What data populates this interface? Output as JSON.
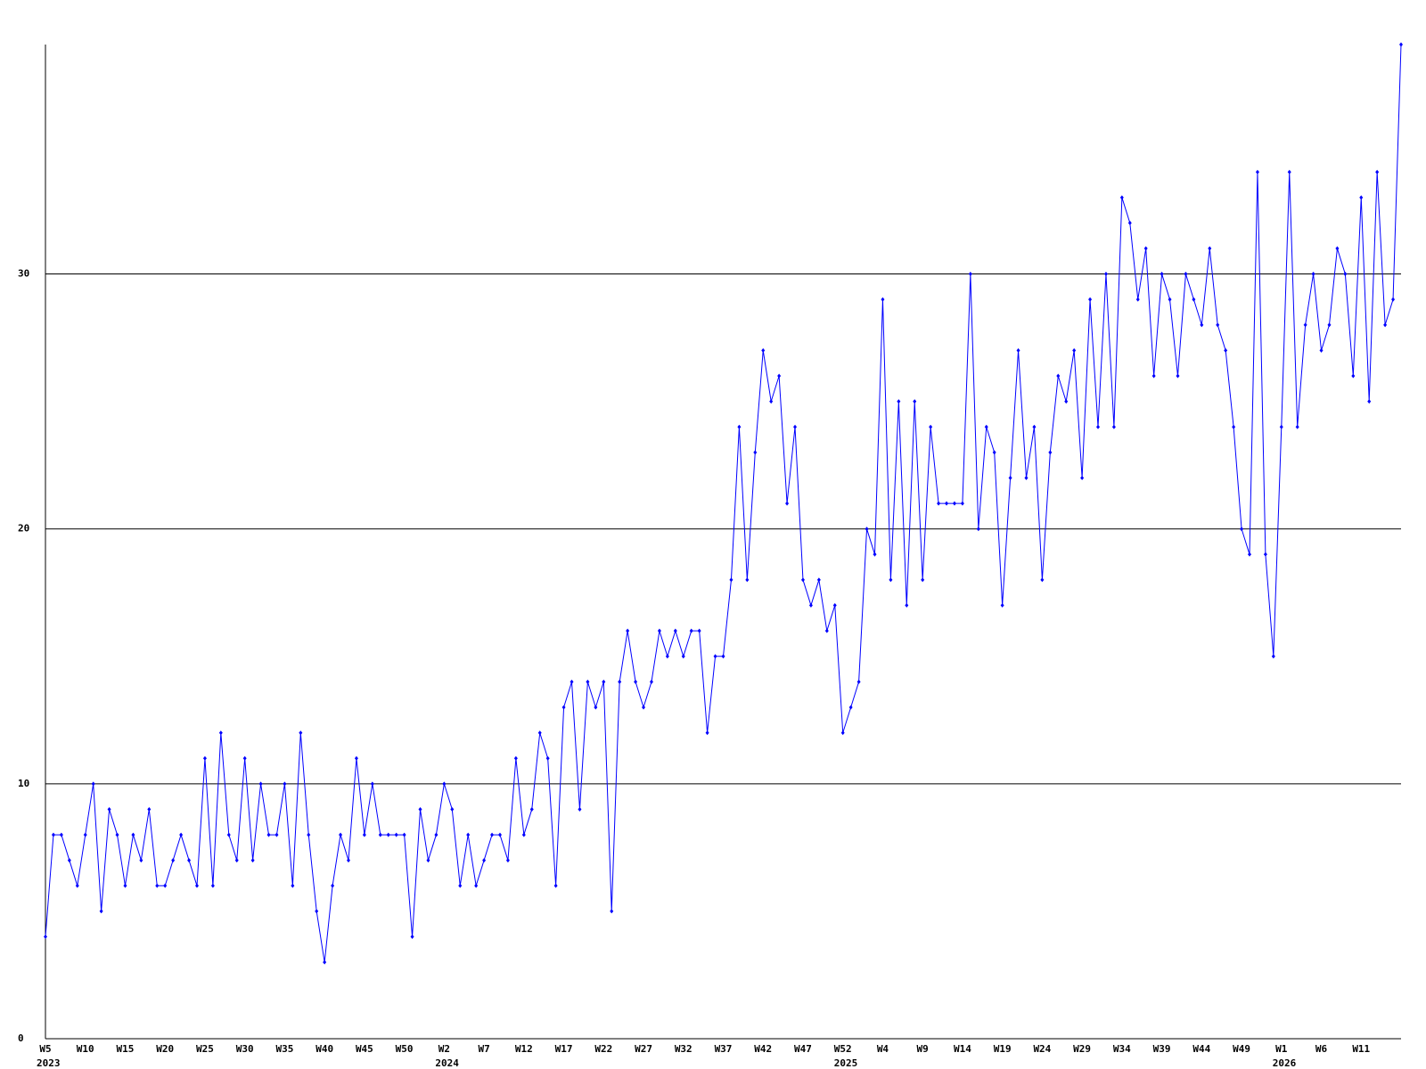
{
  "chart_data": {
    "type": "line",
    "categories": [
      "W5",
      null,
      null,
      null,
      null,
      "W10",
      null,
      null,
      null,
      null,
      "W15",
      null,
      null,
      null,
      null,
      "W20",
      null,
      null,
      null,
      null,
      "W25",
      null,
      null,
      null,
      null,
      "W30",
      null,
      null,
      null,
      null,
      "W35",
      null,
      null,
      null,
      null,
      "W40",
      null,
      null,
      null,
      null,
      "W45",
      null,
      null,
      null,
      null,
      "W50",
      null,
      null,
      null,
      null,
      "W2",
      null,
      null,
      null,
      null,
      "W7",
      null,
      null,
      null,
      null,
      "W12",
      null,
      null,
      null,
      null,
      "W17",
      null,
      null,
      null,
      null,
      "W22",
      null,
      null,
      null,
      null,
      "W27",
      null,
      null,
      null,
      null,
      "W32",
      null,
      null,
      null,
      null,
      "W37",
      null,
      null,
      null,
      null,
      "W42",
      null,
      null,
      null,
      null,
      "W47",
      null,
      null,
      null,
      null,
      "W52",
      null,
      null,
      null,
      null,
      "W4",
      null,
      null,
      null,
      null,
      "W9",
      null,
      null,
      null,
      null,
      "W14",
      null,
      null,
      null,
      null,
      "W19",
      null,
      null,
      null,
      null,
      "W24",
      null,
      null,
      null,
      null,
      "W29",
      null,
      null,
      null,
      null,
      "W34",
      null,
      null,
      null,
      null,
      "W39",
      null,
      null,
      null,
      null,
      "W44",
      null,
      null,
      null,
      null,
      "W49",
      null,
      null,
      null,
      null,
      "W1",
      null,
      null,
      null,
      null,
      "W6",
      null,
      null,
      null,
      null,
      "W11",
      null,
      null,
      null,
      null,
      null
    ],
    "year_labels": [
      {
        "at": 0,
        "label": "2023"
      },
      {
        "at": 50,
        "label": "2024"
      },
      {
        "at": 100,
        "label": "2025"
      },
      {
        "at": 155,
        "label": "2026"
      }
    ],
    "series": [
      {
        "color": "#0000ff",
        "values": [
          4,
          8,
          8,
          7,
          6,
          8,
          10,
          5,
          9,
          8,
          6,
          8,
          7,
          9,
          6,
          6,
          7,
          8,
          7,
          6,
          11,
          6,
          12,
          8,
          7,
          11,
          7,
          10,
          8,
          8,
          10,
          6,
          12,
          8,
          5,
          3,
          6,
          8,
          7,
          11,
          8,
          10,
          8,
          8,
          8,
          8,
          4,
          9,
          7,
          8,
          10,
          9,
          6,
          8,
          6,
          7,
          8,
          8,
          7,
          11,
          8,
          9,
          12,
          11,
          6,
          13,
          14,
          9,
          14,
          13,
          14,
          5,
          14,
          16,
          14,
          13,
          14,
          16,
          15,
          16,
          15,
          16,
          16,
          12,
          15,
          15,
          18,
          24,
          18,
          23,
          27,
          25,
          26,
          21,
          24,
          18,
          17,
          18,
          16,
          17,
          12,
          13,
          14,
          20,
          19,
          29,
          18,
          25,
          17,
          25,
          18,
          24,
          21,
          21,
          21,
          21,
          30,
          20,
          24,
          23,
          17,
          22,
          27,
          22,
          24,
          18,
          23,
          26,
          25,
          27,
          22,
          29,
          24,
          30,
          24,
          33,
          32,
          29,
          31,
          26,
          30,
          29,
          26,
          30,
          29,
          28,
          31,
          28,
          27,
          24,
          20,
          19,
          34,
          19,
          15,
          24,
          34,
          24,
          28,
          30,
          27,
          28,
          31,
          30,
          26,
          33,
          25,
          34,
          28,
          29,
          39
        ]
      }
    ],
    "ylim": [
      0,
      39
    ],
    "yticks": [
      0,
      10,
      20,
      30
    ],
    "grid": true
  }
}
